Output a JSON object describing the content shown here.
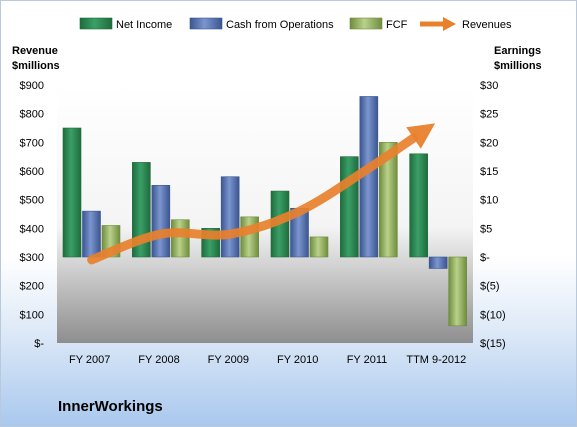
{
  "chart_data": {
    "type": "bar",
    "title": "",
    "company": "InnerWorkings",
    "categories": [
      "FY 2007",
      "FY 2008",
      "FY 2009",
      "FY 2010",
      "FY 2011",
      "TTM 9-2012"
    ],
    "left_axis": {
      "label_line1": "Revenue",
      "label_line2": "$millions",
      "range": [
        0,
        900
      ],
      "ticks": [
        {
          "value": 0,
          "label": "$-"
        },
        {
          "value": 100,
          "label": "$100"
        },
        {
          "value": 200,
          "label": "$200"
        },
        {
          "value": 300,
          "label": "$300"
        },
        {
          "value": 400,
          "label": "$400"
        },
        {
          "value": 500,
          "label": "$500"
        },
        {
          "value": 600,
          "label": "$600"
        },
        {
          "value": 700,
          "label": "$700"
        },
        {
          "value": 800,
          "label": "$800"
        },
        {
          "value": 900,
          "label": "$900"
        }
      ]
    },
    "right_axis": {
      "label_line1": "Earnings",
      "label_line2": "$millions",
      "range": [
        -15,
        30
      ],
      "ticks": [
        {
          "value": -15,
          "label": "$(15)"
        },
        {
          "value": -10,
          "label": "$(10)"
        },
        {
          "value": -5,
          "label": "$(5)"
        },
        {
          "value": 0,
          "label": "$-"
        },
        {
          "value": 5,
          "label": "$5"
        },
        {
          "value": 10,
          "label": "$10"
        },
        {
          "value": 15,
          "label": "$15"
        },
        {
          "value": 20,
          "label": "$20"
        },
        {
          "value": 25,
          "label": "$25"
        },
        {
          "value": 30,
          "label": "$30"
        }
      ]
    },
    "bar_series": [
      {
        "name": "Net Income",
        "color": "#2e8b57",
        "values": [
          22.5,
          16.5,
          5.0,
          11.5,
          17.5,
          18.0
        ]
      },
      {
        "name": "Cash from Operations",
        "color": "#4f6fb5",
        "values": [
          8.0,
          12.5,
          14.0,
          8.5,
          28.0,
          -2.0
        ]
      },
      {
        "name": "FCF",
        "color": "#8fb05a",
        "values": [
          5.5,
          6.5,
          7.0,
          3.5,
          20.0,
          -12.0
        ]
      }
    ],
    "line_series": {
      "name": "Revenues",
      "color": "#e8802c",
      "axis": "left",
      "values": [
        290,
        380,
        380,
        460,
        610,
        750
      ]
    },
    "grid": false,
    "legend_position": "top"
  }
}
